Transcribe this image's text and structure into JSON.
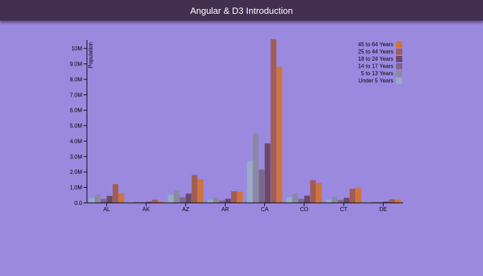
{
  "header": {
    "title": "Angular & D3 Introduction"
  },
  "chart_data": {
    "type": "bar",
    "ylabel": "Population",
    "xlabel": "",
    "ylim": [
      0,
      10500000
    ],
    "y_ticks": [
      0,
      1000000,
      2000000,
      3000000,
      4000000,
      5000000,
      6000000,
      7000000,
      8000000,
      9000000,
      10000000
    ],
    "y_tick_labels": [
      "0.0",
      "1.0M",
      "2.0M",
      "3.0M",
      "4.0M",
      "5.0M",
      "6.0M",
      "7.0M",
      "8.0M",
      "9.0M",
      "10M"
    ],
    "categories": [
      "AL",
      "AK",
      "AZ",
      "AR",
      "CA",
      "CO",
      "CT",
      "DE"
    ],
    "legend_position": "top-right",
    "series": [
      {
        "name": "Under 5 Years",
        "color": "#98abc5",
        "values": [
          310000,
          52000,
          515000,
          202000,
          2705000,
          359000,
          212000,
          59000
        ]
      },
      {
        "name": "5 to 13 Years",
        "color": "#8a89a6",
        "values": [
          553000,
          86000,
          828000,
          344000,
          4500000,
          587000,
          403000,
          100000
        ]
      },
      {
        "name": "14 to 17 Years",
        "color": "#7b6888",
        "values": [
          259000,
          42000,
          363000,
          157000,
          2160000,
          261000,
          196000,
          45000
        ]
      },
      {
        "name": "18 to 24 Years",
        "color": "#6b486b",
        "values": [
          450000,
          74000,
          601000,
          264000,
          3854000,
          467000,
          325000,
          84000
        ]
      },
      {
        "name": "25 to 44 Years",
        "color": "#a05d56",
        "values": [
          1216000,
          199000,
          1804000,
          754000,
          10604000,
          1464000,
          916000,
          231000
        ]
      },
      {
        "name": "45 to 64 Years",
        "color": "#d0743c",
        "values": [
          641000,
          102000,
          1524000,
          727000,
          8820000,
          1290000,
          968000,
          230000
        ]
      }
    ]
  }
}
